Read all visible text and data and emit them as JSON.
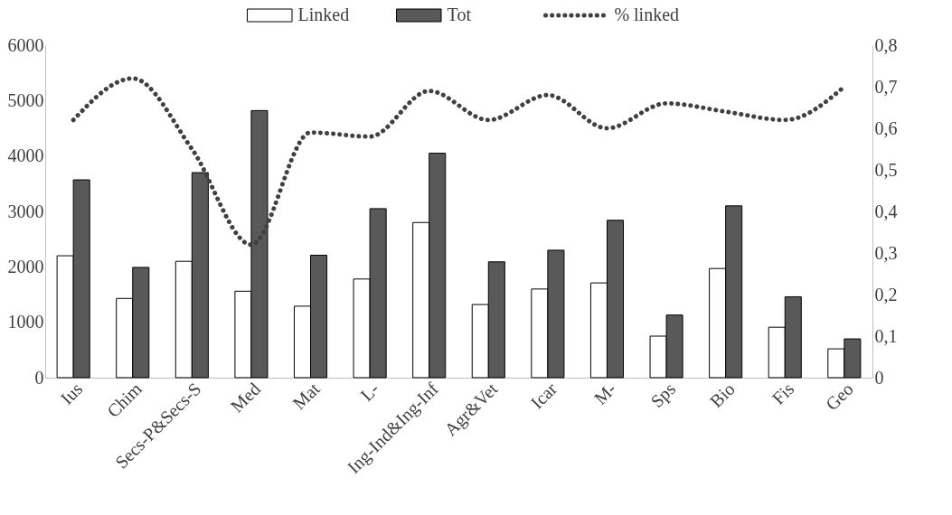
{
  "chart_data": {
    "type": "bar",
    "categories": [
      "Ius",
      "Chim",
      "Secs-P&Secs-S",
      "Med",
      "Mat",
      "L-",
      "Ing-Ind&Ing-Inf",
      "Agr&Vet",
      "Icar",
      "M-",
      "Sps",
      "Bio",
      "Fis",
      "Geo"
    ],
    "series": [
      {
        "name": "Linked",
        "type": "bar",
        "color": "#ffffff",
        "values": [
          2200,
          1430,
          2100,
          1560,
          1290,
          1780,
          2800,
          1320,
          1600,
          1710,
          750,
          1970,
          910,
          520
        ]
      },
      {
        "name": "Tot",
        "type": "bar",
        "color": "#595959",
        "values": [
          3570,
          1990,
          3700,
          4820,
          2210,
          3050,
          4050,
          2090,
          2300,
          2840,
          1130,
          3100,
          1460,
          700
        ]
      },
      {
        "name": "% linked",
        "type": "line",
        "axis": "y2",
        "color": "#404040",
        "line_style": "dotted",
        "values": [
          0.62,
          0.72,
          0.55,
          0.32,
          0.59,
          0.58,
          0.69,
          0.62,
          0.68,
          0.6,
          0.66,
          0.64,
          0.62,
          0.7
        ]
      }
    ],
    "ylim": [
      0,
      6000
    ],
    "yticks": [
      0,
      1000,
      2000,
      3000,
      4000,
      5000,
      6000
    ],
    "y2lim": [
      0,
      0.8
    ],
    "y2ticks": [
      0,
      {
        "value": 0.1,
        "label": "0,1"
      },
      {
        "value": 0.2,
        "label": "0,2"
      },
      {
        "value": 0.3,
        "label": "0,3"
      },
      {
        "value": 0.4,
        "label": "0,4"
      },
      {
        "value": 0.5,
        "label": "0,5"
      },
      {
        "value": 0.6,
        "label": "0,6"
      },
      {
        "value": 0.7,
        "label": "0,7"
      },
      {
        "value": 0.8,
        "label": "0,8"
      }
    ],
    "grid": false,
    "legend": "top"
  }
}
